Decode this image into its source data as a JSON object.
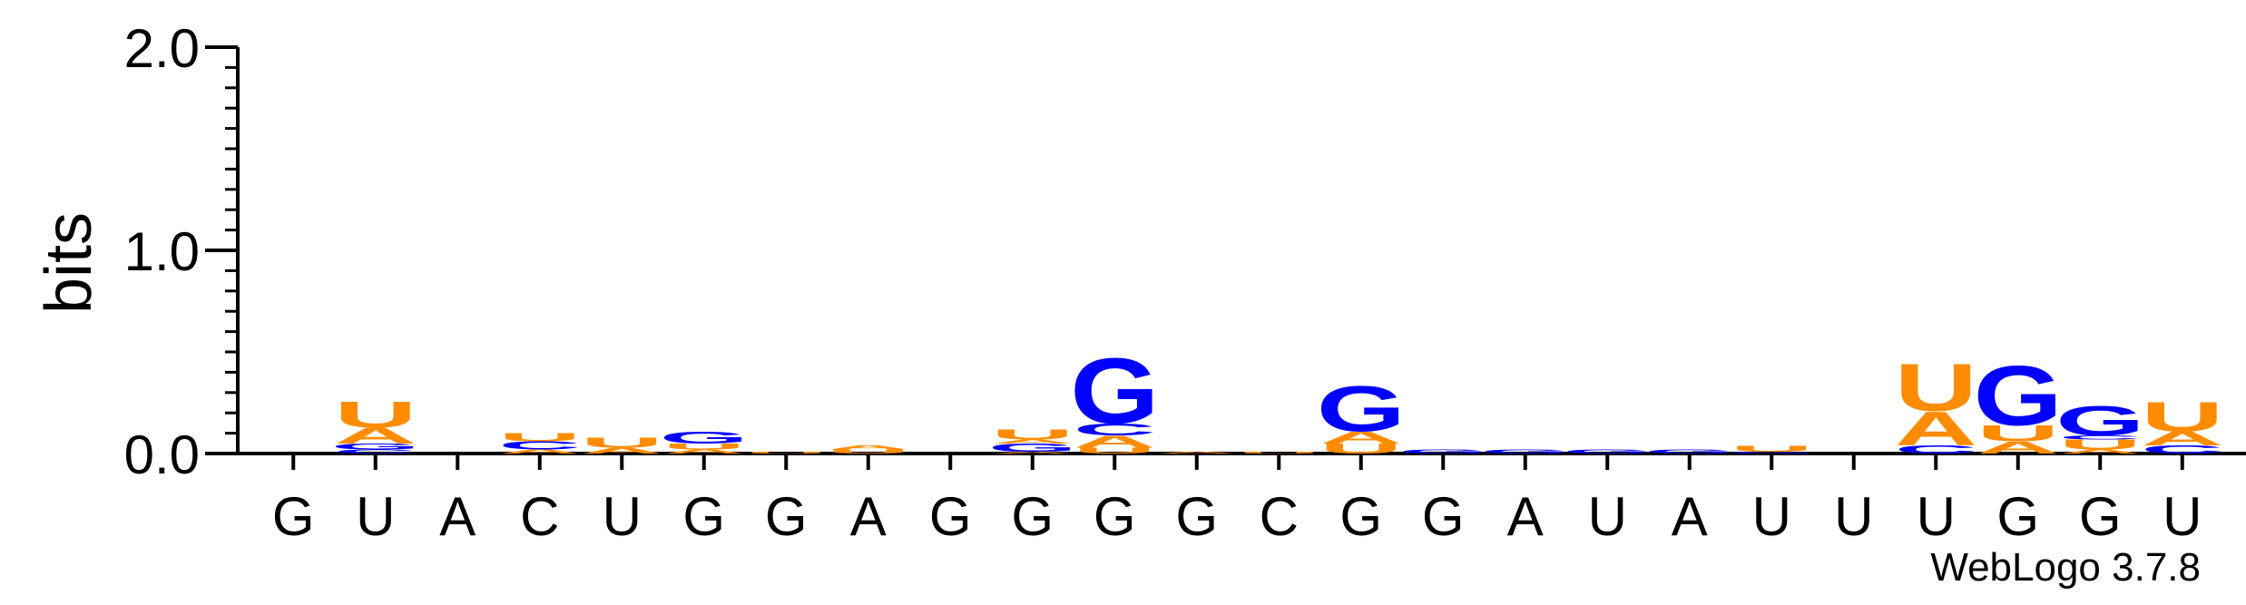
{
  "chart_data": {
    "type": "sequence-logo",
    "ylabel": "bits",
    "ylim": [
      0,
      2.0
    ],
    "yticks": [
      "0.0",
      "1.0",
      "2.0"
    ],
    "ytick_values": [
      0,
      1,
      2
    ],
    "grid": false,
    "legend": "none",
    "colors": {
      "A": "#FF8C00",
      "U": "#FF8C00",
      "G": "#0000FF",
      "C": "#0000FF"
    },
    "credit": "WebLogo 3.7.8",
    "positions": [
      {
        "label": "G",
        "stack": []
      },
      {
        "label": "U",
        "stack": [
          {
            "base": "C",
            "h": 0.02
          },
          {
            "base": "G",
            "h": 0.03
          },
          {
            "base": "A",
            "h": 0.08
          },
          {
            "base": "U",
            "h": 0.13
          }
        ]
      },
      {
        "label": "A",
        "stack": []
      },
      {
        "label": "C",
        "stack": [
          {
            "base": "A",
            "h": 0.02
          },
          {
            "base": "C",
            "h": 0.04
          },
          {
            "base": "U",
            "h": 0.04
          }
        ]
      },
      {
        "label": "U",
        "stack": [
          {
            "base": "A",
            "h": 0.03
          },
          {
            "base": "U",
            "h": 0.05
          }
        ]
      },
      {
        "label": "G",
        "stack": [
          {
            "base": "A",
            "h": 0.02
          },
          {
            "base": "U",
            "h": 0.03
          },
          {
            "base": "G",
            "h": 0.06
          }
        ]
      },
      {
        "label": "G",
        "stack": [
          {
            "base": "U",
            "h": 0.01
          }
        ]
      },
      {
        "label": "A",
        "stack": [
          {
            "base": "U",
            "h": 0.02
          },
          {
            "base": "A",
            "h": 0.02
          }
        ]
      },
      {
        "label": "G",
        "stack": []
      },
      {
        "label": "G",
        "stack": [
          {
            "base": "A",
            "h": 0.01
          },
          {
            "base": "G",
            "h": 0.04
          },
          {
            "base": "A",
            "h": 0.02
          },
          {
            "base": "U",
            "h": 0.05
          }
        ]
      },
      {
        "label": "G",
        "stack": [
          {
            "base": "U",
            "h": 0.03
          },
          {
            "base": "A",
            "h": 0.06
          },
          {
            "base": "C",
            "h": 0.06
          },
          {
            "base": "G",
            "h": 0.33
          }
        ]
      },
      {
        "label": "G",
        "stack": [
          {
            "base": "A",
            "h": 0.01
          }
        ]
      },
      {
        "label": "C",
        "stack": [
          {
            "base": "U",
            "h": 0.01
          }
        ]
      },
      {
        "label": "G",
        "stack": [
          {
            "base": "U",
            "h": 0.05
          },
          {
            "base": "A",
            "h": 0.06
          },
          {
            "base": "G",
            "h": 0.23
          }
        ]
      },
      {
        "label": "G",
        "stack": [
          {
            "base": "G",
            "h": 0.02
          }
        ]
      },
      {
        "label": "A",
        "stack": [
          {
            "base": "G",
            "h": 0.02
          }
        ]
      },
      {
        "label": "U",
        "stack": [
          {
            "base": "G",
            "h": 0.02
          }
        ]
      },
      {
        "label": "A",
        "stack": [
          {
            "base": "G",
            "h": 0.02
          }
        ]
      },
      {
        "label": "U",
        "stack": [
          {
            "base": "G",
            "h": 0.01
          },
          {
            "base": "U",
            "h": 0.03
          }
        ]
      },
      {
        "label": "U",
        "stack": []
      },
      {
        "label": "U",
        "stack": [
          {
            "base": "C",
            "h": 0.04
          },
          {
            "base": "A",
            "h": 0.17
          },
          {
            "base": "U",
            "h": 0.24
          }
        ]
      },
      {
        "label": "G",
        "stack": [
          {
            "base": "A",
            "h": 0.06
          },
          {
            "base": "U",
            "h": 0.08
          },
          {
            "base": "G",
            "h": 0.3
          }
        ]
      },
      {
        "label": "G",
        "stack": [
          {
            "base": "A",
            "h": 0.02
          },
          {
            "base": "U",
            "h": 0.05
          },
          {
            "base": "C",
            "h": 0.02
          },
          {
            "base": "G",
            "h": 0.15
          }
        ]
      },
      {
        "label": "U",
        "stack": [
          {
            "base": "C",
            "h": 0.04
          },
          {
            "base": "A",
            "h": 0.07
          },
          {
            "base": "U",
            "h": 0.15
          }
        ]
      }
    ]
  }
}
